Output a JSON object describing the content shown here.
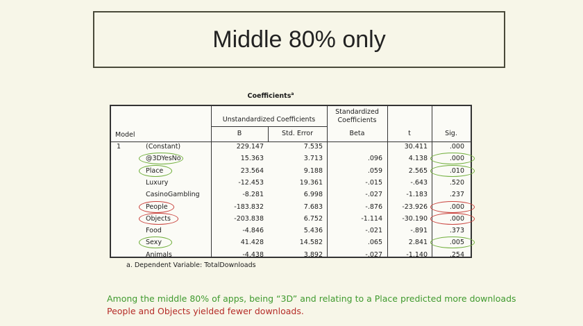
{
  "title": "Middle 80% only",
  "table": {
    "caption": "Coefficients",
    "caption_sup": "a",
    "header": {
      "model": "Model",
      "unstd_group": "Unstandardized Coefficients",
      "std_group": "Standardized Coefficients",
      "b": "B",
      "std_error": "Std. Error",
      "beta": "Beta",
      "t": "t",
      "sig": "Sig."
    },
    "model_number": "1",
    "rows": [
      {
        "name": "(Constant)",
        "b": "229.147",
        "se": "7.535",
        "beta": "",
        "t": "30.411",
        "sig": ".000",
        "name_circle": "none",
        "sig_circle": "none"
      },
      {
        "name": "@3DYesNo",
        "b": "15.363",
        "se": "3.713",
        "beta": ".096",
        "t": "4.138",
        "sig": ".000",
        "name_circle": "green",
        "sig_circle": "green"
      },
      {
        "name": "Place",
        "b": "23.564",
        "se": "9.188",
        "beta": ".059",
        "t": "2.565",
        "sig": ".010",
        "name_circle": "green",
        "sig_circle": "green"
      },
      {
        "name": "Luxury",
        "b": "-12.453",
        "se": "19.361",
        "beta": "-.015",
        "t": "-.643",
        "sig": ".520",
        "name_circle": "none",
        "sig_circle": "none"
      },
      {
        "name": "CasinoGambling",
        "b": "-8.281",
        "se": "6.998",
        "beta": "-.027",
        "t": "-1.183",
        "sig": ".237",
        "name_circle": "none",
        "sig_circle": "none"
      },
      {
        "name": "People",
        "b": "-183.832",
        "se": "7.683",
        "beta": "-.876",
        "t": "-23.926",
        "sig": ".000",
        "name_circle": "red",
        "sig_circle": "red"
      },
      {
        "name": "Objects",
        "b": "-203.838",
        "se": "6.752",
        "beta": "-1.114",
        "t": "-30.190",
        "sig": ".000",
        "name_circle": "red",
        "sig_circle": "red"
      },
      {
        "name": "Food",
        "b": "-4.846",
        "se": "5.436",
        "beta": "-.021",
        "t": "-.891",
        "sig": ".373",
        "name_circle": "none",
        "sig_circle": "none"
      },
      {
        "name": "Sexy",
        "b": "41.428",
        "se": "14.582",
        "beta": ".065",
        "t": "2.841",
        "sig": ".005",
        "name_circle": "green",
        "sig_circle": "green"
      },
      {
        "name": "Animals",
        "b": "-4.438",
        "se": "3.892",
        "beta": "-.027",
        "t": "-1.140",
        "sig": ".254",
        "name_circle": "none",
        "sig_circle": "none"
      }
    ],
    "footnote": "a. Dependent Variable: TotalDownloads"
  },
  "notes": {
    "green": "Among the middle 80% of apps, being “3D” and relating to a Place predicted more downloads",
    "red": "People and Objects yielded fewer downloads."
  },
  "colors": {
    "green": "#3f9a2e",
    "red": "#b52b27",
    "background": "#f7f6e8"
  }
}
